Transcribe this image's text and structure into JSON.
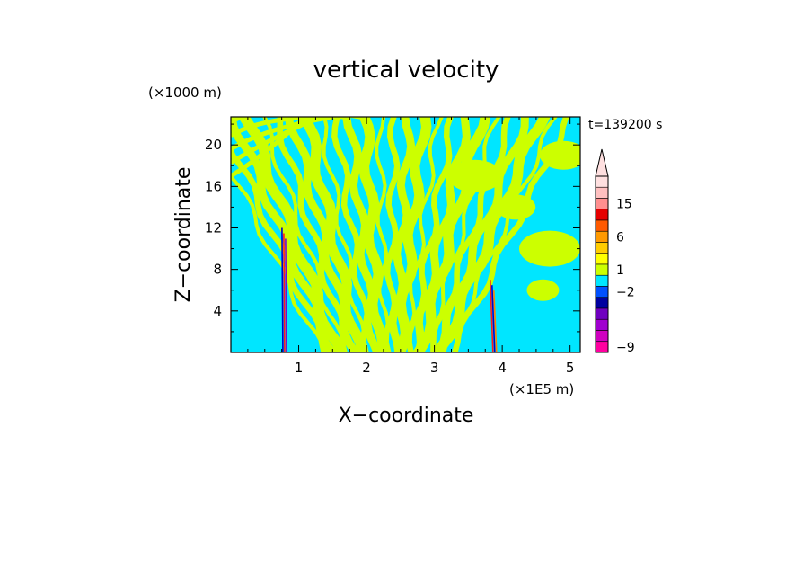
{
  "chart_data": {
    "type": "heatmap",
    "title": "vertical velocity",
    "xlabel": "X−coordinate",
    "ylabel": "Z−coordinate",
    "x_unit": "(×1E5 m)",
    "y_unit": "(×1000 m)",
    "time_label": "t=139200 s",
    "xlim": [
      0,
      5.15
    ],
    "ylim": [
      0,
      22.7
    ],
    "x_ticks": [
      1,
      2,
      3,
      4,
      5
    ],
    "x_tick_labels": [
      "1",
      "2",
      "3",
      "4",
      "5"
    ],
    "y_ticks": [
      4,
      8,
      12,
      16,
      20
    ],
    "y_tick_labels": [
      "4",
      "8",
      "12",
      "16",
      "20"
    ],
    "y_minor_step": 2,
    "x_minor_step": 0.25,
    "pattern": {
      "background_color": "#00e6ff",
      "stripe_color": "#ccff00",
      "description_values": {
        "stripe_center_x": 2.3,
        "stripe_bands": 26
      },
      "plumes": [
        {
          "x": 0.78,
          "z_top": 12.0,
          "colors": [
            "#0000cc",
            "#ff1a1a",
            "#7f00cc"
          ]
        },
        {
          "x": 3.85,
          "z_top": 7.0,
          "colors": [
            "#ff1a1a",
            "#0000cc",
            "#ff8000"
          ]
        }
      ]
    },
    "colorbar": {
      "levels_top_to_bottom": [
        {
          "color": "#ffe0e0"
        },
        {
          "color": "#ffc0c0"
        },
        {
          "color": "#ff8f8f"
        },
        {
          "color": "#e60000"
        },
        {
          "color": "#ff5a00"
        },
        {
          "color": "#ff9900"
        },
        {
          "color": "#ffcc00"
        },
        {
          "color": "#ffff00"
        },
        {
          "color": "#ccff00"
        },
        {
          "color": "#00e6ff"
        },
        {
          "color": "#0050ff"
        },
        {
          "color": "#0000a0"
        },
        {
          "color": "#7000c0"
        },
        {
          "color": "#a000d0"
        },
        {
          "color": "#d000c0"
        },
        {
          "color": "#ff00a0"
        }
      ],
      "labels": [
        {
          "text": "15",
          "level_index": 2
        },
        {
          "text": "6",
          "level_index": 5
        },
        {
          "text": "1",
          "level_index": 8
        },
        {
          "text": "−2",
          "level_index": 10
        },
        {
          "text": "−9",
          "level_index": 15
        }
      ]
    }
  }
}
